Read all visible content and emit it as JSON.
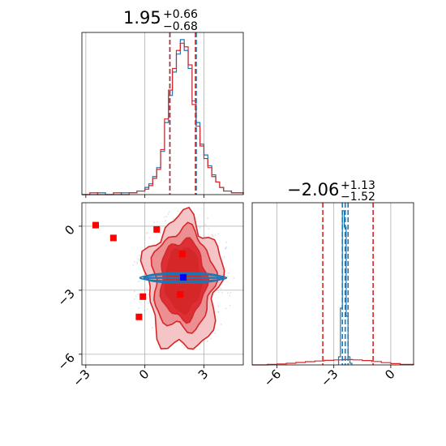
{
  "chart_data": [
    {
      "panel": "marginal-top",
      "type": "histogram",
      "title": {
        "median": "1.95",
        "plus": "+0.66",
        "minus": "−0.68"
      },
      "xlim": [
        -3.2,
        5.0
      ],
      "quantile_lines": {
        "red": [
          1.27,
          2.57
        ],
        "blue": [
          1.27,
          2.61
        ]
      },
      "series": [
        {
          "name": "",
          "color": "#1f77b4",
          "bin_edges": [
            -3.2,
            -2.8,
            -2.4,
            -2.0,
            -1.6,
            -1.2,
            -0.8,
            -0.4,
            0.0,
            0.2,
            0.4,
            0.6,
            0.8,
            1.0,
            1.2,
            1.4,
            1.6,
            1.8,
            2.0,
            2.2,
            2.4,
            2.6,
            2.8,
            3.0,
            3.2,
            3.4,
            3.6,
            3.8,
            4.0,
            4.4,
            5.0
          ],
          "counts": [
            0,
            0,
            0.01,
            0,
            0,
            0.01,
            0.01,
            0.02,
            0.04,
            0.06,
            0.1,
            0.15,
            0.24,
            0.4,
            0.55,
            0.68,
            0.78,
            0.86,
            0.8,
            0.7,
            0.52,
            0.4,
            0.28,
            0.22,
            0.16,
            0.11,
            0.07,
            0.04,
            0.02,
            0.01
          ]
        },
        {
          "name": "",
          "color": "#d62728",
          "bin_edges": [
            -3.2,
            -2.8,
            -2.4,
            -2.0,
            -1.6,
            -1.2,
            -0.8,
            -0.4,
            0.0,
            0.2,
            0.4,
            0.6,
            0.8,
            1.0,
            1.2,
            1.4,
            1.6,
            1.8,
            2.0,
            2.2,
            2.4,
            2.6,
            2.8,
            3.0,
            3.2,
            3.4,
            3.6,
            3.8,
            4.0,
            4.4,
            5.0
          ],
          "counts": [
            0,
            0.01,
            0,
            0,
            0.01,
            0,
            0.01,
            0.02,
            0.03,
            0.05,
            0.09,
            0.14,
            0.25,
            0.42,
            0.58,
            0.7,
            0.8,
            0.84,
            0.82,
            0.72,
            0.5,
            0.38,
            0.27,
            0.2,
            0.15,
            0.1,
            0.07,
            0.04,
            0.02,
            0.01
          ]
        }
      ]
    },
    {
      "panel": "joint",
      "type": "scatter",
      "xlim": [
        -3.2,
        5.0
      ],
      "ylim": [
        -6.5,
        1.1
      ],
      "x_ticks": [
        "−3",
        "0",
        "3"
      ],
      "x_tick_values": [
        -3,
        0,
        3
      ],
      "y_ticks": [
        "−6",
        "−3",
        "0"
      ],
      "y_tick_values": [
        -6,
        -3,
        0
      ],
      "red_points": [
        [
          -2.5,
          0.05
        ],
        [
          -1.6,
          -0.55
        ],
        [
          0.6,
          -0.15
        ],
        [
          1.9,
          -1.3
        ],
        [
          -0.1,
          -3.3
        ],
        [
          1.8,
          -3.2
        ],
        [
          -0.3,
          -4.25
        ]
      ],
      "blue_point": [
        1.95,
        -2.4
      ],
      "red_contours": "filled 0.5/1/1.5/2-sigma contours centred near (1.95, -2.5)",
      "blue_contours": "narrow horizontal ellipse near y = -2.4"
    },
    {
      "panel": "marginal-right",
      "type": "histogram",
      "title": {
        "median": "−2.06",
        "plus": "+1.13",
        "minus": "−1.52"
      },
      "xlim": [
        -7.3,
        1.2
      ],
      "x_ticks": [
        "−6",
        "−3",
        "0"
      ],
      "x_tick_values": [
        -6,
        -3,
        0
      ],
      "quantile_lines": {
        "red": [
          -3.58,
          -0.93
        ],
        "blue": [
          -2.55,
          -2.4,
          -2.25
        ]
      },
      "series": [
        {
          "name": "",
          "color": "#d62728",
          "bin_edges": [
            -7.3,
            -6.5,
            -6.0,
            -5.5,
            -5.0,
            -4.5,
            -4.0,
            -3.5,
            -3.0,
            -2.5,
            -2.0,
            -1.5,
            -1.0,
            -0.5,
            0.0,
            0.5,
            1.2
          ],
          "counts": [
            0,
            0.003,
            0.006,
            0.01,
            0.015,
            0.02,
            0.024,
            0.028,
            0.031,
            0.033,
            0.031,
            0.027,
            0.021,
            0.014,
            0.008,
            0.003
          ]
        },
        {
          "name": "",
          "color": "#1f77b4",
          "bin_edges": [
            -2.75,
            -2.65,
            -2.55,
            -2.45,
            -2.35,
            -2.25,
            -2.15,
            -2.05
          ],
          "counts": [
            0.05,
            0.35,
            0.95,
            0.85,
            0.3,
            0.05,
            0.01
          ]
        }
      ]
    }
  ]
}
